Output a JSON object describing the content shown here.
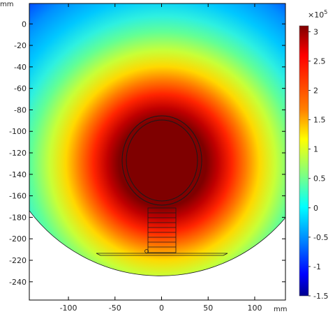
{
  "chart_data": {
    "type": "heatmap",
    "title": "",
    "xlabel": "mm",
    "ylabel": "mm",
    "xlim": [
      -142,
      133
    ],
    "ylim": [
      -257,
      19
    ],
    "x_ticks": [
      -100,
      -50,
      0,
      50,
      100
    ],
    "y_ticks": [
      0,
      -20,
      -40,
      -60,
      -80,
      -100,
      -120,
      -140,
      -160,
      -180,
      -200,
      -220,
      -240
    ],
    "x_tick_labels": [
      "-100",
      "-50",
      "0",
      "50",
      "100"
    ],
    "y_tick_labels": [
      "0",
      "-20",
      "-40",
      "-60",
      "-80",
      "-100",
      "-120",
      "-140",
      "-160",
      "-180",
      "-200",
      "-220",
      "-240"
    ],
    "field_center": [
      0,
      -130
    ],
    "colorbar": {
      "multiplier_label": "×10",
      "multiplier_exponent": "5",
      "range": [
        -1.5,
        3.1
      ],
      "ticks": [
        3,
        2.5,
        2,
        1.5,
        1,
        0.5,
        0,
        -0.5,
        -1,
        -1.5
      ],
      "tick_labels": [
        "3",
        "2.5",
        "2",
        "1.5",
        "1",
        "0.5",
        "0",
        "-0.5",
        "-1",
        "-1.5"
      ],
      "colormap": "jet"
    }
  }
}
